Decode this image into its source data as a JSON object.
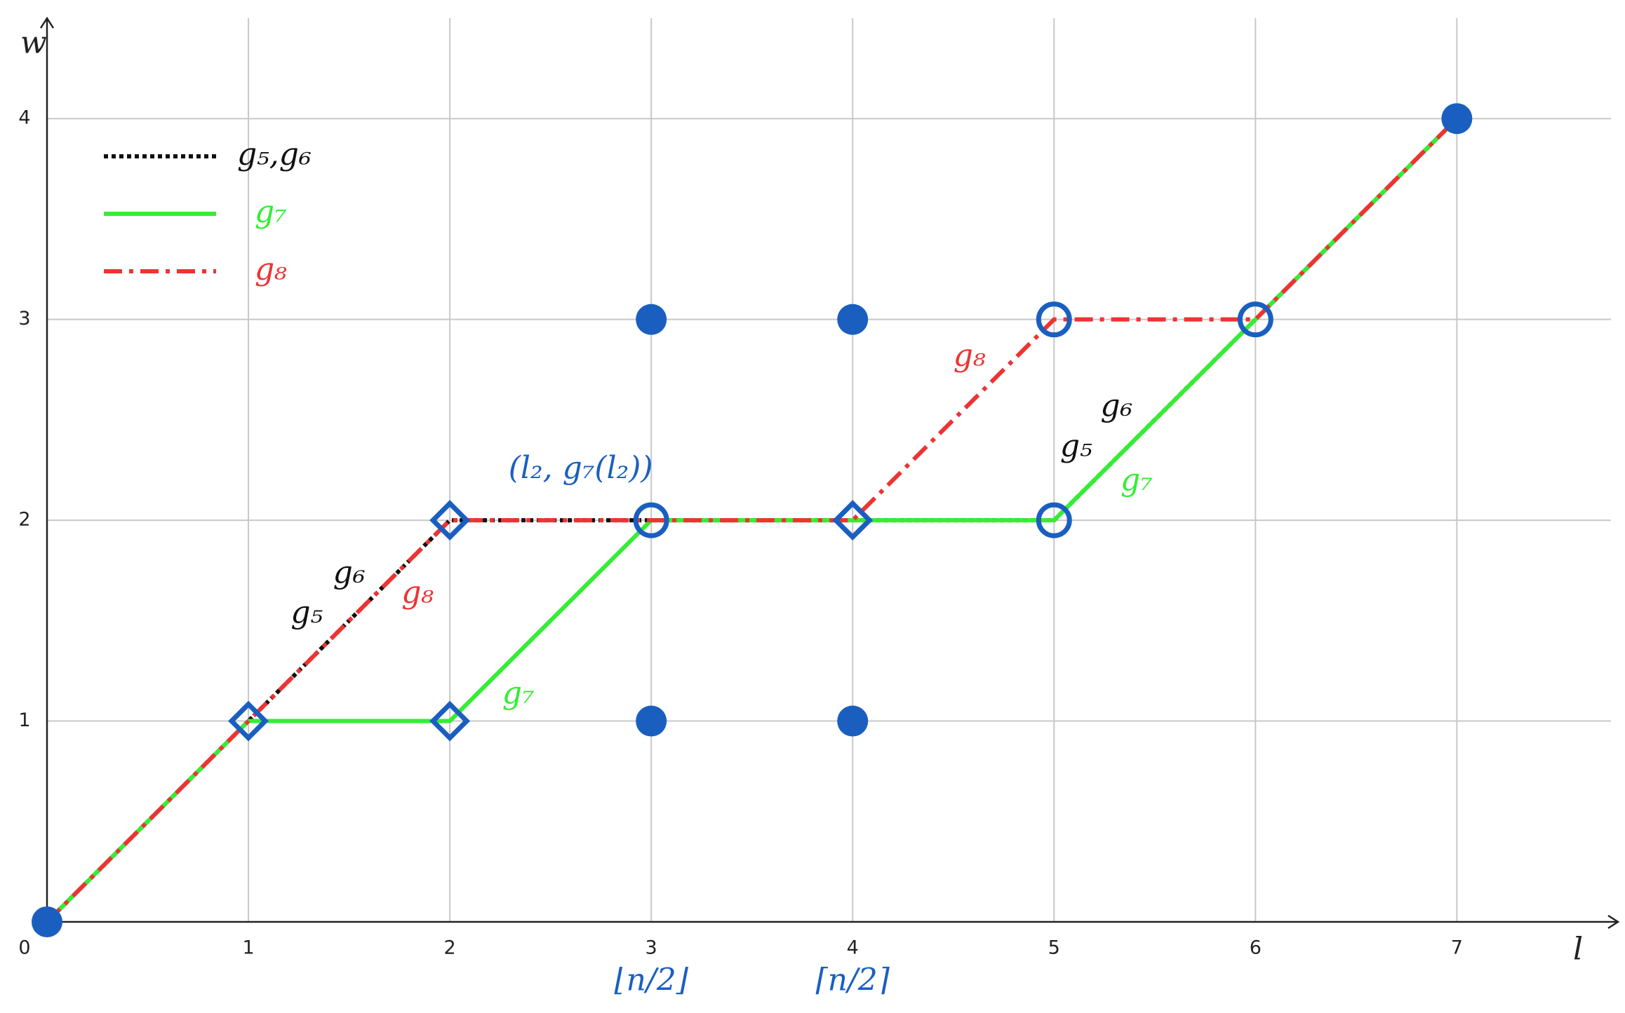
{
  "chart_data": {
    "type": "line",
    "xlabel": "l",
    "ylabel": "w",
    "x": [
      0,
      1,
      2,
      3,
      4,
      5,
      6,
      7
    ],
    "series": [
      {
        "name": "g₅,g₆",
        "color": "#111111",
        "style": "dotted",
        "values": [
          0,
          1,
          2,
          2,
          2,
          2,
          3,
          4
        ]
      },
      {
        "name": "g₇",
        "color": "#33ee33",
        "style": "solid",
        "values": [
          0,
          1,
          1,
          2,
          2,
          2,
          3,
          4
        ]
      },
      {
        "name": "g₈",
        "color": "#ee3333",
        "style": "dashdot",
        "values": [
          0,
          1,
          2,
          2,
          2,
          3,
          3,
          4
        ]
      }
    ],
    "markers": [
      {
        "shape": "dot",
        "color": "#1a5fc0",
        "x": [
          0,
          3,
          4,
          3,
          4,
          7
        ],
        "y": [
          0,
          3,
          3,
          1,
          1,
          4
        ]
      },
      {
        "shape": "diamond",
        "color": "#1a5fc0",
        "x": [
          1,
          2,
          2,
          4
        ],
        "y": [
          1,
          2,
          1,
          2
        ]
      },
      {
        "shape": "circle",
        "color": "#1a5fc0",
        "x": [
          3,
          5,
          5,
          6
        ],
        "y": [
          2,
          2,
          3,
          3
        ]
      }
    ],
    "annotations": [
      {
        "text": "g₆",
        "color": "#111111"
      },
      {
        "text": "g₅",
        "color": "#111111"
      },
      {
        "text": "g₈",
        "color": "#ee3333"
      },
      {
        "text": "g₇",
        "color": "#33ee33"
      },
      {
        "text": "(l₂, g₇(l₂))",
        "color": "#1a5fc0"
      },
      {
        "text": "g₈",
        "color": "#ee3333"
      },
      {
        "text": "g₆",
        "color": "#111111"
      },
      {
        "text": "g₅",
        "color": "#111111"
      },
      {
        "text": "g₇",
        "color": "#33ee33"
      },
      {
        "text": "⌊n/2⌋",
        "color": "#1a5fc0"
      },
      {
        "text": "⌈n/2⌉",
        "color": "#1a5fc0"
      }
    ],
    "xlim": [
      0,
      7.8
    ],
    "ylim": [
      0,
      4.5
    ],
    "xticks": [
      0,
      1,
      2,
      3,
      4,
      5,
      6,
      7
    ],
    "yticks": [
      1,
      2,
      3,
      4
    ],
    "grid": true,
    "legend": "upper left"
  }
}
